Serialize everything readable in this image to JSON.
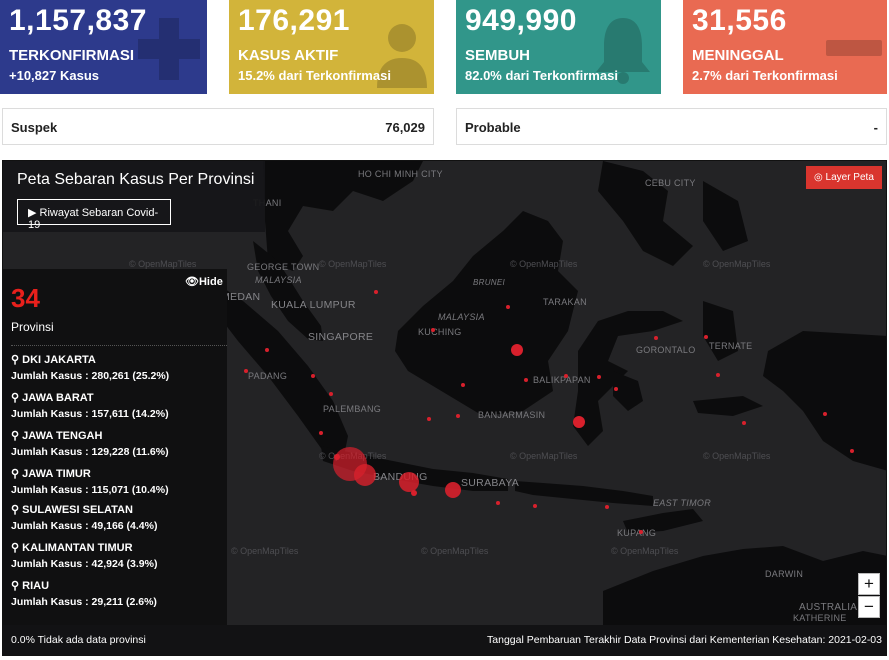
{
  "cards": [
    {
      "value": "1,157,837",
      "label": "TERKONFIRMASI",
      "sub": "+10,827 Kasus",
      "color": "#2d3a8c",
      "icon": "plus-icon"
    },
    {
      "value": "176,291",
      "label": "KASUS AKTIF",
      "sub": "15.2% dari Terkonfirmasi",
      "color": "#d2b43a",
      "icon": "person-mask-icon"
    },
    {
      "value": "949,990",
      "label": "SEMBUH",
      "sub": "82.0% dari Terkonfirmasi",
      "color": "#31968a",
      "icon": "bell-icon"
    },
    {
      "value": "31,556",
      "label": "MENINGGAL",
      "sub": "2.7% dari Terkonfirmasi",
      "color": "#e96a52",
      "icon": "minus-icon"
    }
  ],
  "suspek": {
    "label": "Suspek",
    "value": "76,029"
  },
  "probable": {
    "label": "Probable",
    "value": "-"
  },
  "map": {
    "title": "Peta Sebaran Kasus Per Provinsi",
    "history_button": "Riwayat Sebaran Covid-19",
    "layer_button": "Layer Peta",
    "hide_label": "Hide",
    "province_count": "34",
    "province_count_label": "Provinsi",
    "provinces": [
      {
        "name": "DKI JAKARTA",
        "cases": "Jumlah Kasus : 280,261 (25.2%)"
      },
      {
        "name": "JAWA BARAT",
        "cases": "Jumlah Kasus : 157,611 (14.2%)"
      },
      {
        "name": "JAWA TENGAH",
        "cases": "Jumlah Kasus : 129,228 (11.6%)"
      },
      {
        "name": "JAWA TIMUR",
        "cases": "Jumlah Kasus : 115,071 (10.4%)"
      },
      {
        "name": "SULAWESI SELATAN",
        "cases": "Jumlah Kasus : 49,166 (4.4%)"
      },
      {
        "name": "KALIMANTAN TIMUR",
        "cases": "Jumlah Kasus : 42,924 (3.9%)"
      },
      {
        "name": "RIAU",
        "cases": "Jumlah Kasus : 29,211 (2.6%)"
      }
    ],
    "labels": {
      "ho_chi_minh": "HO CHI MINH CITY",
      "cebu": "CEBU CITY",
      "thani": "THANI",
      "george_town": "GEORGE TOWN",
      "malaysia_w": "MALAYSIA",
      "kuala_lumpur": "KUALA LUMPUR",
      "medan": "MEDAN",
      "singapore": "SINGAPORE",
      "brunei": "BRUNEI",
      "tarakan": "TARAKAN",
      "malaysia_e": "MALAYSIA",
      "kuching": "KUCHING",
      "gorontalo": "GORONTALO",
      "ternate": "TERNATE",
      "padang": "PADANG",
      "balikpapan": "BALIKPAPAN",
      "palembang": "PALEMBANG",
      "banjarmasin": "BANJARMASIN",
      "bandung": "BANDUNG",
      "surabaya": "SURABAYA",
      "east_timor": "EAST TIMOR",
      "kupang": "KUPANG",
      "darwin": "DARWIN",
      "australia": "AUSTRALIA",
      "katherine": "KATHERINE",
      "openmaptiles": "© OpenMapTiles"
    },
    "zoom_in": "+",
    "zoom_out": "−",
    "footer_left": "0.0% Tidak ada data provinsi",
    "footer_right": "Tanggal Pembaruan Terakhir Data Provinsi dari Kementerian Kesehatan: 2021-02-03"
  },
  "colors": {
    "marker": "#d8202c",
    "map_bg": "#232325",
    "land": "#0c0c0d"
  }
}
